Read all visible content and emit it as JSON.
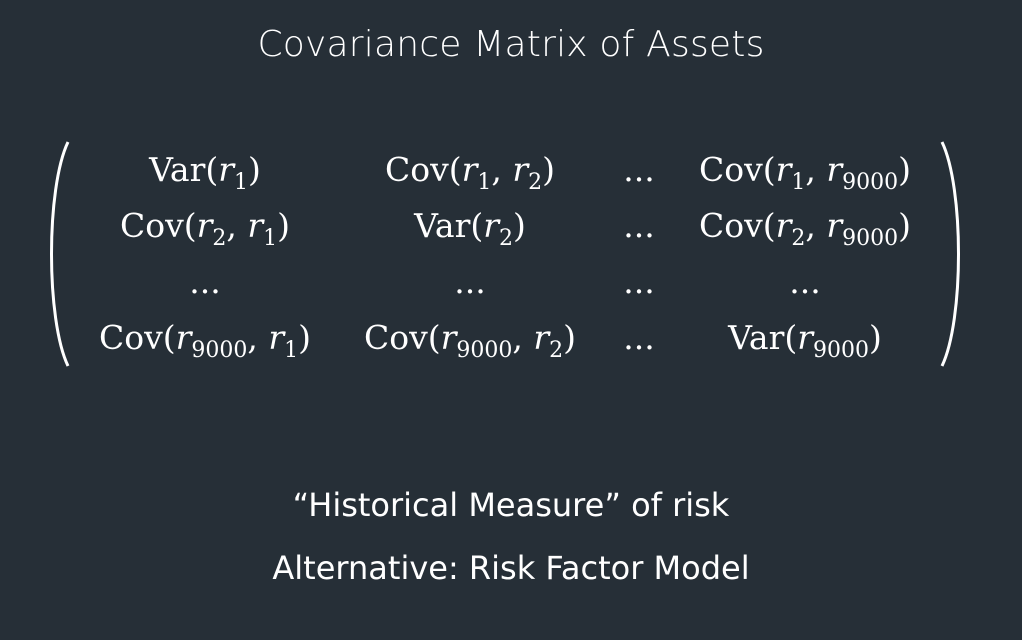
{
  "title": "Covariance Matrix of Assets",
  "matrix": {
    "rows": [
      [
        {
          "fn": "Var",
          "args": [
            {
              "v": "r",
              "s": "1"
            }
          ]
        },
        {
          "fn": "Cov",
          "args": [
            {
              "v": "r",
              "s": "1"
            },
            {
              "v": "r",
              "s": "2"
            }
          ]
        },
        {
          "text": "..."
        },
        {
          "fn": "Cov",
          "args": [
            {
              "v": "r",
              "s": "1"
            },
            {
              "v": "r",
              "s": "9000"
            }
          ]
        }
      ],
      [
        {
          "fn": "Cov",
          "args": [
            {
              "v": "r",
              "s": "2"
            },
            {
              "v": "r",
              "s": "1"
            }
          ]
        },
        {
          "fn": "Var",
          "args": [
            {
              "v": "r",
              "s": "2"
            }
          ]
        },
        {
          "text": "..."
        },
        {
          "fn": "Cov",
          "args": [
            {
              "v": "r",
              "s": "2"
            },
            {
              "v": "r",
              "s": "9000"
            }
          ]
        }
      ],
      [
        {
          "text": "..."
        },
        {
          "text": "..."
        },
        {
          "text": "..."
        },
        {
          "text": "..."
        }
      ],
      [
        {
          "fn": "Cov",
          "args": [
            {
              "v": "r",
              "s": "9000"
            },
            {
              "v": "r",
              "s": "1"
            }
          ]
        },
        {
          "fn": "Cov",
          "args": [
            {
              "v": "r",
              "s": "9000"
            },
            {
              "v": "r",
              "s": "2"
            }
          ]
        },
        {
          "text": "..."
        },
        {
          "fn": "Var",
          "args": [
            {
              "v": "r",
              "s": "9000"
            }
          ]
        }
      ]
    ]
  },
  "footer": {
    "line1": "“Historical Measure” of risk",
    "line2": "Alternative: Risk Factor Model"
  }
}
